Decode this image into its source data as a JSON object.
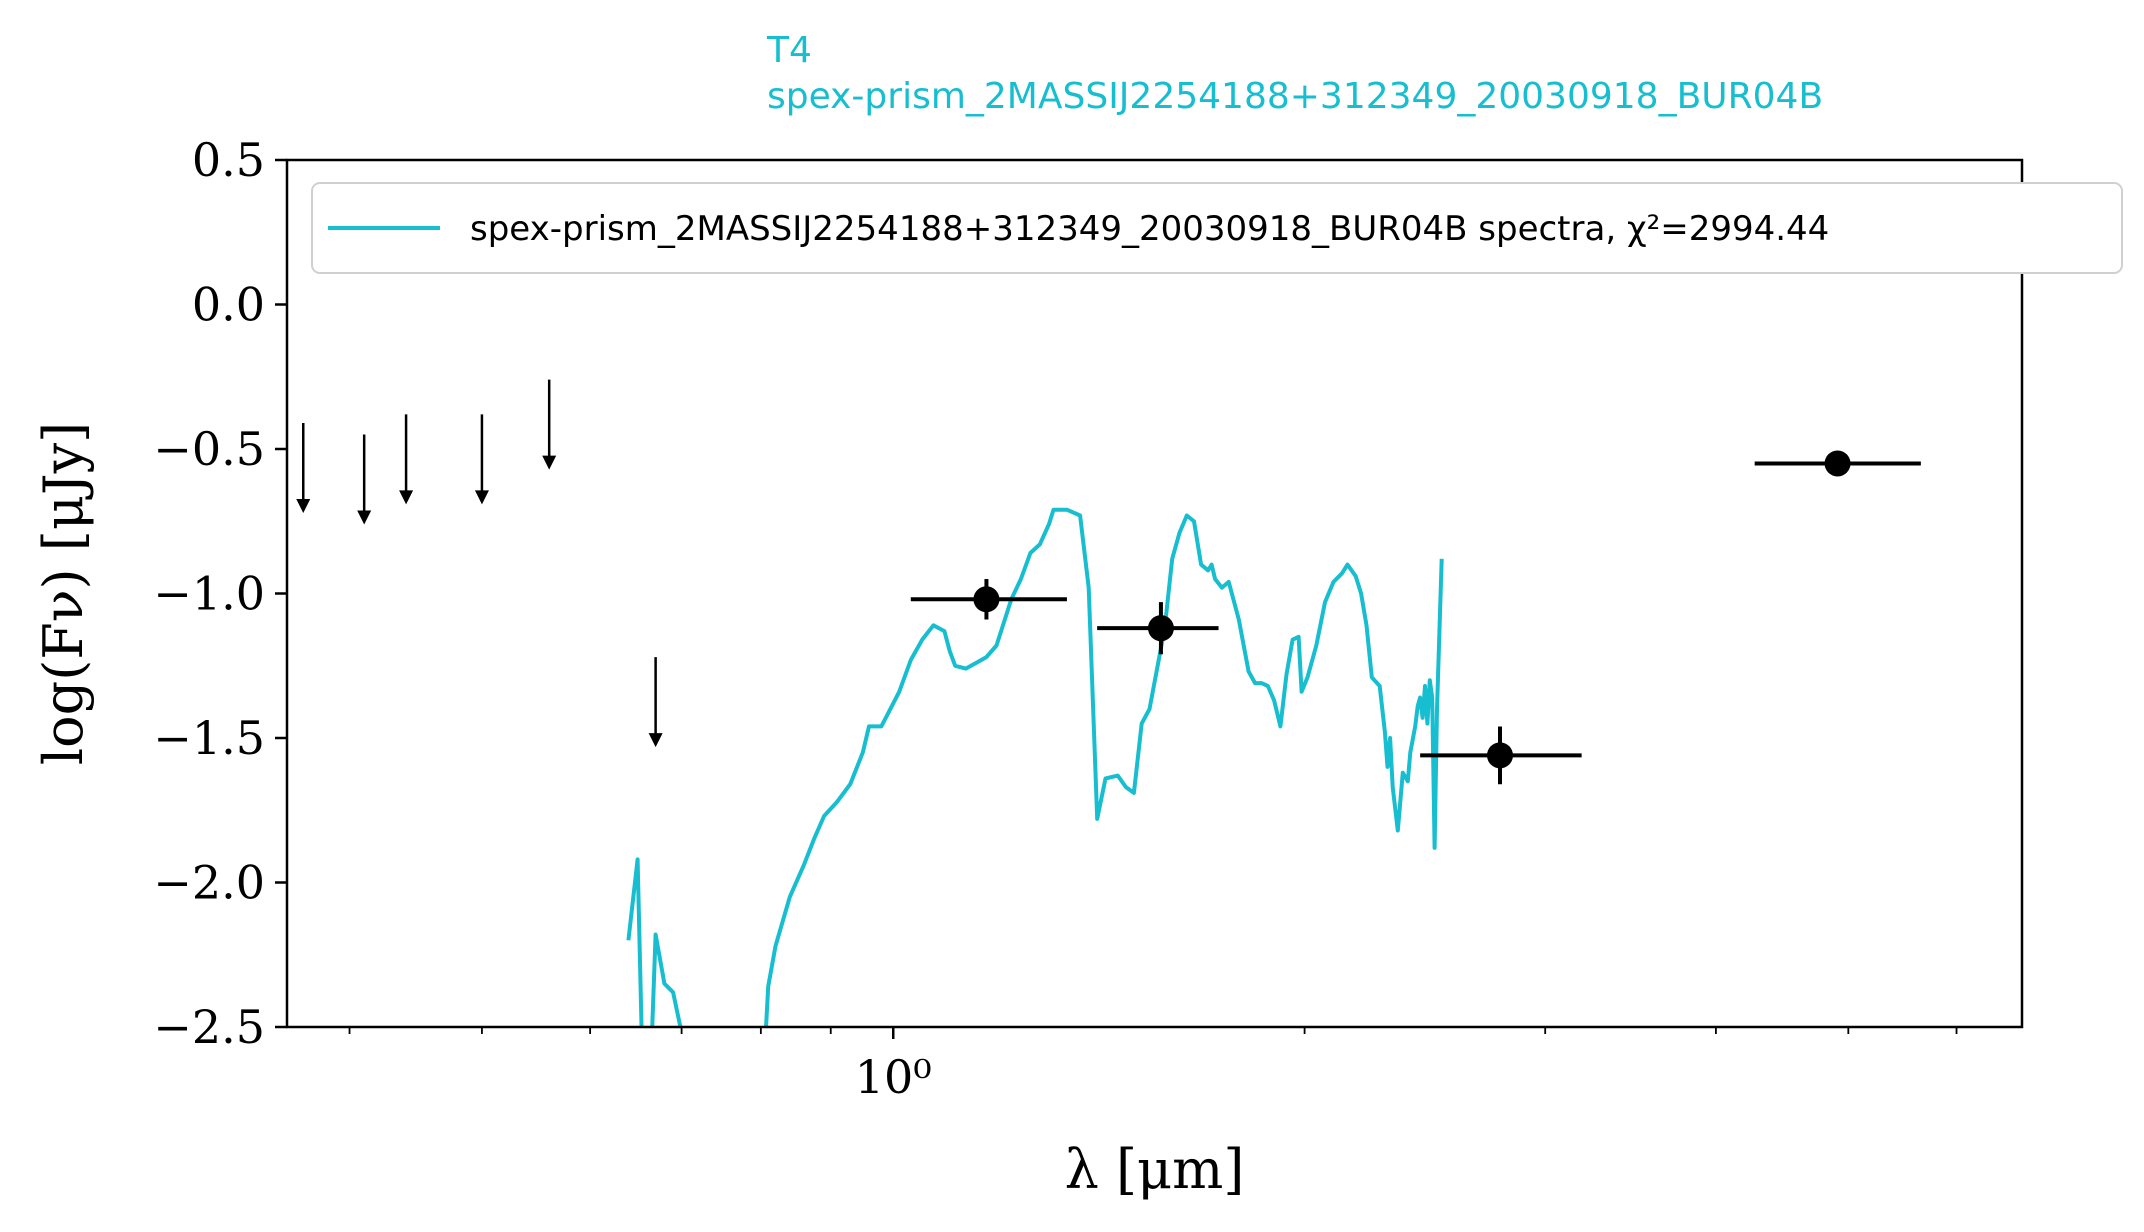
{
  "chart_data": {
    "type": "line",
    "title_lines": [
      "T4",
      "spex-prism_2MASSIJ2254188+312349_20030918_BUR04B"
    ],
    "title_color": "#17BECF",
    "xlabel": "λ [μm]",
    "ylabel": "log(Fν) [μJy]",
    "x_scale": "log",
    "xlim": [
      0.36,
      6.7
    ],
    "ylim": [
      -2.5,
      0.5
    ],
    "y_ticks": [
      0.5,
      0.0,
      -0.5,
      -1.0,
      -1.5,
      -2.0,
      -2.5
    ],
    "y_tick_labels": [
      "0.5",
      "0.0",
      "−0.5",
      "−1.0",
      "−1.5",
      "−2.0",
      "−2.5"
    ],
    "x_major_tick_label": "10⁰",
    "x_minor_ticks": [
      0.4,
      0.5,
      0.6,
      0.7,
      0.8,
      0.9,
      2,
      3,
      4,
      5,
      6
    ],
    "grid": false,
    "legend_position": "top-right",
    "legend": {
      "label": "spex-prism_2MASSIJ2254188+312349_20030918_BUR04B spectra, χ²=2994.44",
      "color": "#17BECF"
    },
    "series": [
      {
        "name": "spex-prism_2MASSIJ2254188+312349_20030918_BUR04B spectra, χ²=2994.44",
        "color": "#17BECF",
        "kind": "line",
        "points": [
          [
            0.64,
            -2.2
          ],
          [
            0.65,
            -1.92
          ],
          [
            0.655,
            -2.6
          ],
          null,
          [
            0.665,
            -2.6
          ],
          [
            0.67,
            -2.18
          ],
          [
            0.68,
            -2.35
          ],
          [
            0.69,
            -2.38
          ],
          [
            0.7,
            -2.52
          ],
          null,
          [
            0.805,
            -2.6
          ],
          [
            0.81,
            -2.36
          ],
          [
            0.82,
            -2.22
          ],
          [
            0.84,
            -2.05
          ],
          [
            0.86,
            -1.94
          ],
          [
            0.875,
            -1.85
          ],
          [
            0.89,
            -1.77
          ],
          [
            0.91,
            -1.72
          ],
          [
            0.93,
            -1.66
          ],
          [
            0.95,
            -1.55
          ],
          [
            0.96,
            -1.46
          ],
          [
            0.98,
            -1.46
          ],
          [
            0.99,
            -1.42
          ],
          [
            1.01,
            -1.34
          ],
          [
            1.03,
            -1.23
          ],
          [
            1.05,
            -1.16
          ],
          [
            1.07,
            -1.11
          ],
          [
            1.09,
            -1.13
          ],
          [
            1.1,
            -1.2
          ],
          [
            1.11,
            -1.25
          ],
          [
            1.13,
            -1.26
          ],
          [
            1.15,
            -1.24
          ],
          [
            1.17,
            -1.22
          ],
          [
            1.19,
            -1.18
          ],
          [
            1.22,
            -1.02
          ],
          [
            1.24,
            -0.95
          ],
          [
            1.26,
            -0.86
          ],
          [
            1.28,
            -0.83
          ],
          [
            1.3,
            -0.76
          ],
          [
            1.31,
            -0.71
          ],
          [
            1.34,
            -0.71
          ],
          [
            1.37,
            -0.73
          ],
          [
            1.39,
            -0.98
          ],
          [
            1.41,
            -1.78
          ],
          [
            1.43,
            -1.64
          ],
          [
            1.46,
            -1.63
          ],
          [
            1.48,
            -1.67
          ],
          [
            1.5,
            -1.69
          ],
          [
            1.52,
            -1.45
          ],
          [
            1.54,
            -1.4
          ],
          [
            1.56,
            -1.26
          ],
          [
            1.58,
            -1.12
          ],
          [
            1.6,
            -0.88
          ],
          [
            1.62,
            -0.79
          ],
          [
            1.64,
            -0.73
          ],
          [
            1.66,
            -0.75
          ],
          [
            1.68,
            -0.9
          ],
          [
            1.7,
            -0.92
          ],
          [
            1.71,
            -0.9
          ],
          [
            1.72,
            -0.95
          ],
          [
            1.74,
            -0.98
          ],
          [
            1.76,
            -0.96
          ],
          [
            1.79,
            -1.09
          ],
          [
            1.82,
            -1.27
          ],
          [
            1.84,
            -1.31
          ],
          [
            1.86,
            -1.31
          ],
          [
            1.88,
            -1.32
          ],
          [
            1.9,
            -1.37
          ],
          [
            1.92,
            -1.46
          ],
          [
            1.94,
            -1.28
          ],
          [
            1.96,
            -1.16
          ],
          [
            1.98,
            -1.15
          ],
          [
            1.99,
            -1.34
          ],
          [
            2.01,
            -1.29
          ],
          [
            2.04,
            -1.18
          ],
          [
            2.07,
            -1.03
          ],
          [
            2.1,
            -0.96
          ],
          [
            2.13,
            -0.93
          ],
          [
            2.15,
            -0.9
          ],
          [
            2.18,
            -0.94
          ],
          [
            2.2,
            -1.0
          ],
          [
            2.22,
            -1.11
          ],
          [
            2.24,
            -1.29
          ],
          [
            2.27,
            -1.32
          ],
          [
            2.29,
            -1.48
          ],
          [
            2.3,
            -1.6
          ],
          [
            2.31,
            -1.5
          ],
          [
            2.32,
            -1.67
          ],
          [
            2.34,
            -1.82
          ],
          [
            2.36,
            -1.62
          ],
          [
            2.38,
            -1.65
          ],
          [
            2.39,
            -1.55
          ],
          [
            2.41,
            -1.46
          ],
          [
            2.42,
            -1.39
          ],
          [
            2.43,
            -1.36
          ],
          [
            2.44,
            -1.43
          ],
          [
            2.45,
            -1.32
          ],
          [
            2.46,
            -1.45
          ],
          [
            2.47,
            -1.3
          ],
          [
            2.48,
            -1.36
          ],
          [
            2.49,
            -1.88
          ],
          [
            2.5,
            -1.4
          ],
          [
            2.52,
            -0.88
          ]
        ]
      },
      {
        "name": "photometry",
        "color": "#000000",
        "kind": "errorbar",
        "points": [
          {
            "x": 1.17,
            "y": -1.02,
            "xerr": [
              1.03,
              1.34
            ],
            "yerr": 0.07
          },
          {
            "x": 1.57,
            "y": -1.12,
            "xerr": [
              1.41,
              1.73
            ],
            "yerr": 0.09
          },
          {
            "x": 2.78,
            "y": -1.56,
            "xerr": [
              2.43,
              3.19
            ],
            "yerr": 0.1
          },
          {
            "x": 4.91,
            "y": -0.55,
            "xerr": [
              4.27,
              5.65
            ],
            "yerr": 0.0
          }
        ]
      },
      {
        "name": "upper limits",
        "color": "#000000",
        "kind": "upper_limit",
        "points": [
          {
            "x": 0.37,
            "y": -0.41
          },
          {
            "x": 0.41,
            "y": -0.45
          },
          {
            "x": 0.44,
            "y": -0.38
          },
          {
            "x": 0.5,
            "y": -0.38
          },
          {
            "x": 0.56,
            "y": -0.26
          },
          {
            "x": 0.67,
            "y": -1.22
          }
        ]
      }
    ]
  }
}
